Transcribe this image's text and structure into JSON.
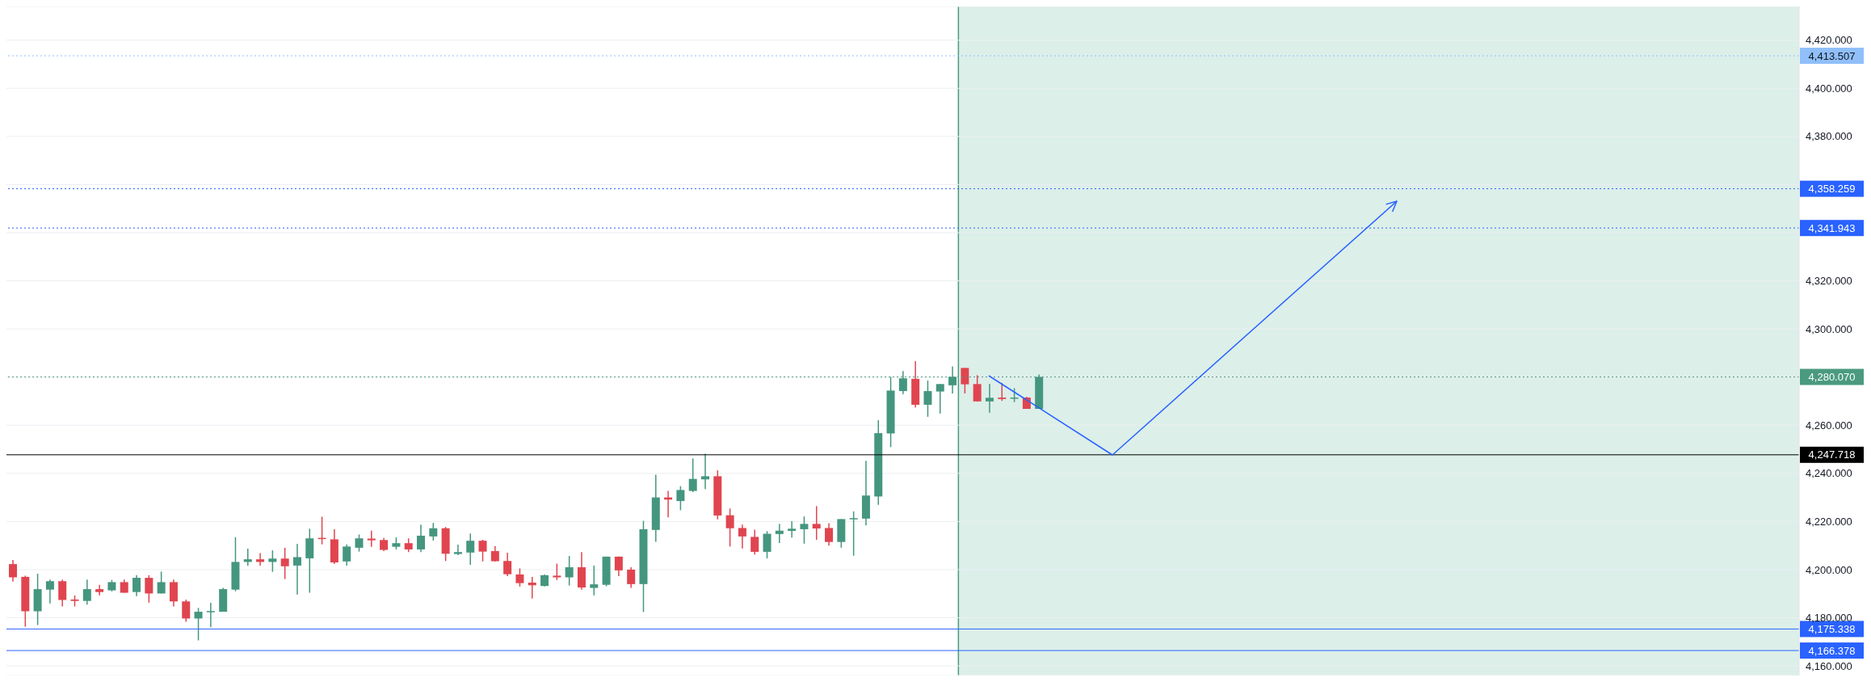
{
  "chart_data": {
    "type": "candlestick",
    "categories": [
      null,
      null,
      null,
      null,
      null,
      null,
      null,
      null,
      null,
      null,
      null,
      null,
      null,
      null,
      null,
      null,
      null,
      null,
      null,
      null,
      null,
      null,
      null,
      null,
      null,
      null,
      null,
      null,
      null,
      null,
      null,
      null,
      null,
      null,
      null,
      null,
      null,
      null,
      null,
      null,
      null,
      null,
      null,
      null,
      null,
      null,
      null,
      null,
      null,
      null,
      null,
      null,
      null,
      null,
      null,
      null,
      null,
      null,
      null,
      null,
      null,
      null,
      null,
      null,
      null,
      null,
      null,
      null,
      null,
      null,
      null,
      null,
      null,
      null,
      null,
      null,
      null,
      null,
      null,
      null,
      null,
      null,
      null,
      null,
      null,
      null,
      null,
      null,
      null,
      null,
      null,
      null,
      null,
      null,
      null,
      null,
      null,
      null,
      null,
      null,
      null,
      null,
      null,
      null,
      null,
      null,
      null,
      null,
      null,
      null,
      null,
      null,
      null,
      null,
      null,
      null,
      null,
      null,
      null,
      null,
      null,
      null,
      null,
      null,
      null,
      null,
      null,
      null,
      null,
      null,
      null,
      null,
      null,
      null,
      null,
      null,
      null,
      null,
      null,
      null,
      null,
      null,
      null,
      null,
      null
    ],
    "ohlc": [
      [
        4202.3,
        4204,
        4195,
        4196.8
      ],
      [
        4197,
        4197.5,
        4176.3,
        4182.7
      ],
      [
        4182.7,
        4198.3,
        4177,
        4191.9
      ],
      [
        4191.7,
        4195.9,
        4186,
        4195.2
      ],
      [
        4195.2,
        4195.9,
        4184.7,
        4187.4
      ],
      [
        4187.6,
        4189.3,
        4184.7,
        4187
      ],
      [
        4187,
        4195.9,
        4185.5,
        4191.9
      ],
      [
        4191.9,
        4193.7,
        4189.3,
        4190.7
      ],
      [
        4191.4,
        4195.7,
        4191,
        4194.8
      ],
      [
        4194.8,
        4195.9,
        4190.4,
        4190.4
      ],
      [
        4190.7,
        4197.7,
        4189,
        4196.6
      ],
      [
        4196.6,
        4197.7,
        4186.3,
        4190.1
      ],
      [
        4190.1,
        4199.2,
        4190.1,
        4194.8
      ],
      [
        4194.8,
        4195.9,
        4184.7,
        4186.8
      ],
      [
        4186.8,
        4187.6,
        4178.3,
        4179.7
      ],
      [
        4179.7,
        4184.1,
        4170.6,
        4182.5
      ],
      [
        4182.6,
        4186.2,
        4176.1,
        4182.8
      ],
      [
        4182.5,
        4192.4,
        4182.5,
        4191.9
      ],
      [
        4191.7,
        4213.5,
        4191,
        4203.2
      ],
      [
        4203.2,
        4208.7,
        4201.7,
        4204.3
      ],
      [
        4204.3,
        4206.9,
        4201.7,
        4203.2
      ],
      [
        4203.2,
        4208,
        4199.1,
        4204.6
      ],
      [
        4204.6,
        4209.1,
        4196.1,
        4201.4
      ],
      [
        4201.7,
        4210.7,
        4189.7,
        4205.2
      ],
      [
        4204.7,
        4217,
        4190.4,
        4213
      ],
      [
        4213.2,
        4222,
        4210.5,
        4213
      ],
      [
        4212.6,
        4216.8,
        4202.3,
        4203
      ],
      [
        4203.4,
        4210.5,
        4201.7,
        4209.6
      ],
      [
        4209.1,
        4214.6,
        4207.5,
        4213
      ],
      [
        4212.9,
        4216.2,
        4209.5,
        4212.2
      ],
      [
        4212.3,
        4213.2,
        4207.7,
        4208.2
      ],
      [
        4209.5,
        4213.4,
        4208.4,
        4211
      ],
      [
        4211,
        4213,
        4207.3,
        4208.4
      ],
      [
        4208.4,
        4218.7,
        4207.3,
        4214.1
      ],
      [
        4213.8,
        4219.4,
        4212.1,
        4217.2
      ],
      [
        4217.2,
        4217.7,
        4203.6,
        4206.6
      ],
      [
        4206.5,
        4210.4,
        4206,
        4207.3
      ],
      [
        4207.1,
        4215,
        4202,
        4212
      ],
      [
        4212,
        4212.4,
        4203.4,
        4207.5
      ],
      [
        4207.7,
        4209.8,
        4203.3,
        4203.5
      ],
      [
        4203.6,
        4207,
        4197.3,
        4198.1
      ],
      [
        4198,
        4200.5,
        4193,
        4194.4
      ],
      [
        4194.6,
        4197,
        4188,
        4193.5
      ],
      [
        4193.2,
        4198,
        4193,
        4197.7
      ],
      [
        4197.5,
        4202.5,
        4195.7,
        4196.8
      ],
      [
        4196.8,
        4205.7,
        4193.4,
        4201
      ],
      [
        4201,
        4207.3,
        4191.7,
        4192.6
      ],
      [
        4192.4,
        4201.7,
        4189.3,
        4193.9
      ],
      [
        4193.7,
        4205.4,
        4193.1,
        4205.4
      ],
      [
        4205.4,
        4205.4,
        4197.3,
        4199.7
      ],
      [
        4200,
        4201,
        4192.4,
        4194
      ],
      [
        4194,
        4220.3,
        4182.4,
        4216.8
      ],
      [
        4216.5,
        4239.4,
        4211.6,
        4230
      ],
      [
        4230,
        4232.7,
        4221.7,
        4229.1
      ],
      [
        4228.5,
        4234.7,
        4224.7,
        4233.1
      ],
      [
        4232.7,
        4246.2,
        4232.2,
        4237.7
      ],
      [
        4237.5,
        4248.2,
        4233.5,
        4238.8
      ],
      [
        4238.8,
        4241.3,
        4220.9,
        4222.5
      ],
      [
        4222.6,
        4225.4,
        4209.6,
        4217.2
      ],
      [
        4217.3,
        4218.7,
        4208.8,
        4213.8
      ],
      [
        4213.6,
        4216.6,
        4206.3,
        4207.4
      ],
      [
        4207.4,
        4216,
        4204.7,
        4214.9
      ],
      [
        4214.8,
        4219,
        4211.1,
        4216.2
      ],
      [
        4216.1,
        4220.1,
        4213.3,
        4217
      ],
      [
        4216.8,
        4222.1,
        4210.8,
        4219
      ],
      [
        4219,
        4226.4,
        4212.4,
        4217.1
      ],
      [
        4217.3,
        4219.3,
        4210,
        4211.5
      ],
      [
        4211.5,
        4221,
        4209.1,
        4221
      ],
      [
        4221.2,
        4224.2,
        4205.8,
        4221.4
      ],
      [
        4221.2,
        4245.2,
        4218.4,
        4230.8
      ],
      [
        4230.4,
        4262.1,
        4226.9,
        4256.7
      ],
      [
        4256.6,
        4280.1,
        4250.9,
        4274.4
      ],
      [
        4274.2,
        4282.5,
        4272.9,
        4279.5
      ],
      [
        4279.3,
        4286.6,
        4267.4,
        4268.5
      ],
      [
        4268.5,
        4278.6,
        4263.5,
        4274.2
      ],
      [
        4274,
        4277.1,
        4264.9,
        4277.1
      ],
      [
        4276.6,
        4284.4,
        4273.2,
        4280.1
      ],
      [
        4283.8,
        4283.8,
        4273.2,
        4277
      ],
      [
        4277.1,
        4280.8,
        4269.9,
        4269.9
      ],
      [
        4269.9,
        4277.1,
        4265.2,
        4271.4
      ],
      [
        4271.5,
        4277.6,
        4270.1,
        4270.9
      ],
      [
        4271.3,
        4275.4,
        4269.6,
        4271.5
      ],
      [
        4271.5,
        4271.8,
        4266.8,
        4266.8
      ],
      [
        4266.8,
        4281.1,
        4266.8,
        4280.1
      ],
      null,
      null,
      null,
      null,
      null,
      null,
      null,
      null,
      null,
      null,
      null,
      null,
      null,
      null,
      null,
      null,
      null,
      null,
      null,
      null,
      null,
      null,
      null,
      null,
      null,
      null,
      null,
      null,
      null,
      null,
      null,
      null,
      null,
      null,
      null,
      null,
      null,
      null,
      null,
      null,
      null,
      null,
      null,
      null,
      null,
      null,
      null,
      null,
      null,
      null,
      null,
      null,
      null,
      null,
      null,
      null,
      null,
      null,
      null,
      null,
      null
    ],
    "ylim": [
      4156,
      4434
    ],
    "yticks": [
      {
        "value": 4160,
        "label": "4,160.000"
      },
      {
        "value": 4180,
        "label": "4,180.000"
      },
      {
        "value": 4200,
        "label": "4,200.000"
      },
      {
        "value": 4220,
        "label": "4,220.000"
      },
      {
        "value": 4240,
        "label": "4,240.000"
      },
      {
        "value": 4260,
        "label": "4,260.000"
      },
      {
        "value": 4280,
        "label": null
      },
      {
        "value": 4300,
        "label": "4,300.000"
      },
      {
        "value": 4320,
        "label": "4,320.000"
      },
      {
        "value": 4340,
        "label": null
      },
      {
        "value": 4360,
        "label": null
      },
      {
        "value": 4380,
        "label": "4,380.000"
      },
      {
        "value": 4400,
        "label": "4,400.000"
      },
      {
        "value": 4420,
        "label": "4,420.000"
      }
    ],
    "tick_labels": "y",
    "grid": "y",
    "ref_lines": [
      {
        "axis": "y",
        "value": 4413.507,
        "label": "4,413.507",
        "color": "#90bff9",
        "line_style": "dotted"
      },
      {
        "axis": "y",
        "value": 4358.259,
        "label": "4,358.259",
        "color": "#2962ff",
        "line_style": "dotted"
      },
      {
        "axis": "y",
        "value": 4341.943,
        "label": "4,341.943",
        "color": "#2962ff",
        "line_style": "dotted"
      },
      {
        "axis": "y",
        "value": 4280.07,
        "label": "4,280.070",
        "color": "#4a9a80",
        "line_style": "dotted"
      },
      {
        "axis": "y",
        "value": 4247.718,
        "label": "4,247.718",
        "color": "#000000",
        "line_style": "solid"
      },
      {
        "axis": "y",
        "value": 4175.338,
        "label": "4,175.338",
        "color": "#2962ff",
        "line_style": "solid"
      },
      {
        "axis": "y",
        "value": 4166.378,
        "label": "4,166.378",
        "color": "#2962ff",
        "line_style": "solid"
      }
    ]
  }
}
